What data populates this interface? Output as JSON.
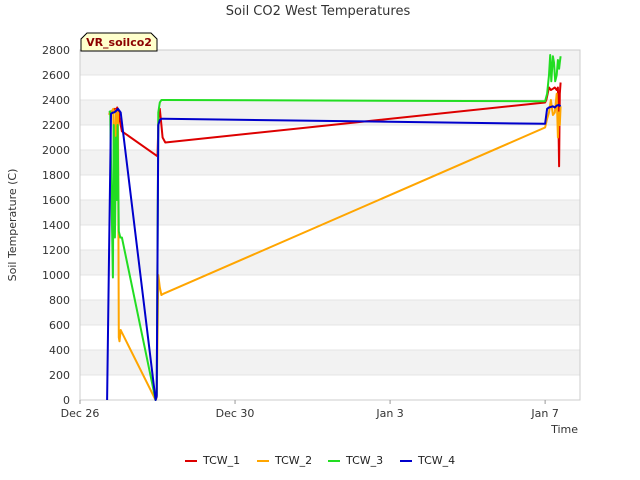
{
  "chart_data": {
    "type": "line",
    "title": "Soil CO2 West Temperatures",
    "xlabel": "Time",
    "ylabel": "Soil Temperature (C)",
    "site_label": "VR_soilco2",
    "ylim": [
      0,
      2800
    ],
    "yticks": [
      0,
      200,
      400,
      600,
      800,
      1000,
      1200,
      1400,
      1600,
      1800,
      2000,
      2200,
      2400,
      2600,
      2800
    ],
    "xlim": [
      0,
      12.9
    ],
    "xtick_values": [
      0,
      4,
      8,
      12
    ],
    "xtick_labels": [
      "Dec 26",
      "Dec 30",
      "Jan 3",
      "Jan 7"
    ],
    "legend_position": "bottom",
    "series": [
      {
        "name": "TCW_1",
        "color": "#dd0000",
        "x": [
          0.75,
          0.78,
          0.85,
          0.9,
          0.93,
          0.96,
          1.0,
          1.02,
          1.05,
          1.08,
          2.0,
          2.03,
          2.06,
          2.1,
          2.13,
          2.2,
          12.0,
          12.03,
          12.1,
          12.15,
          12.2,
          12.25,
          12.3,
          12.33,
          12.36,
          12.38,
          12.4
        ],
        "y": [
          2290,
          2300,
          2320,
          2330,
          2310,
          2340,
          2300,
          2250,
          2200,
          2150,
          1950,
          2300,
          2330,
          2200,
          2100,
          2060,
          2380,
          2400,
          2500,
          2480,
          2490,
          2500,
          2480,
          2500,
          1870,
          2450,
          2540
        ]
      },
      {
        "name": "TCW_2",
        "color": "#ffa500",
        "x": [
          0.75,
          0.78,
          0.82,
          0.86,
          0.88,
          0.9,
          0.93,
          0.96,
          0.98,
          1.0,
          1.02,
          1.05,
          1.08,
          1.95,
          1.98,
          2.02,
          2.06,
          2.1,
          2.15,
          12.0,
          12.05,
          12.1,
          12.15,
          12.2,
          12.25,
          12.3,
          12.33,
          12.35,
          12.38,
          12.4
        ],
        "y": [
          2280,
          2300,
          2310,
          2330,
          1800,
          2050,
          2320,
          1900,
          2300,
          500,
          470,
          560,
          540,
          0,
          20,
          1000,
          900,
          840,
          850,
          2180,
          2250,
          2300,
          2400,
          2280,
          2300,
          2450,
          2100,
          2300,
          2200,
          2350
        ]
      },
      {
        "name": "TCW_3",
        "color": "#22dd22",
        "x": [
          0.75,
          0.78,
          0.82,
          0.85,
          0.87,
          0.9,
          0.93,
          0.95,
          0.97,
          1.0,
          1.04,
          1.08,
          1.95,
          1.98,
          2.02,
          2.06,
          2.1,
          2.15,
          12.0,
          12.05,
          12.1,
          12.13,
          12.16,
          12.2,
          12.23,
          12.26,
          12.3,
          12.33,
          12.36,
          12.38,
          12.4
        ],
        "y": [
          2300,
          2310,
          1500,
          980,
          2200,
          1300,
          2100,
          1600,
          2200,
          1350,
          1300,
          1300,
          0,
          40,
          2300,
          2380,
          2400,
          2400,
          2390,
          2450,
          2600,
          2760,
          2550,
          2750,
          2700,
          2550,
          2600,
          2720,
          2650,
          2700,
          2750
        ]
      },
      {
        "name": "TCW_4",
        "color": "#0000cc",
        "x": [
          0.7,
          0.75,
          0.8,
          0.85,
          0.88,
          0.92,
          0.95,
          0.98,
          1.0,
          1.05,
          1.95,
          1.98,
          2.02,
          2.06,
          2.1,
          2.15,
          12.0,
          12.05,
          12.1,
          12.15,
          12.2,
          12.25,
          12.3,
          12.35,
          12.4
        ],
        "y": [
          0,
          1200,
          2290,
          2300,
          2300,
          2310,
          2320,
          2330,
          2320,
          2300,
          0,
          30,
          2200,
          2240,
          2250,
          2250,
          2210,
          2330,
          2340,
          2345,
          2350,
          2340,
          2355,
          2360,
          2350
        ]
      }
    ]
  }
}
